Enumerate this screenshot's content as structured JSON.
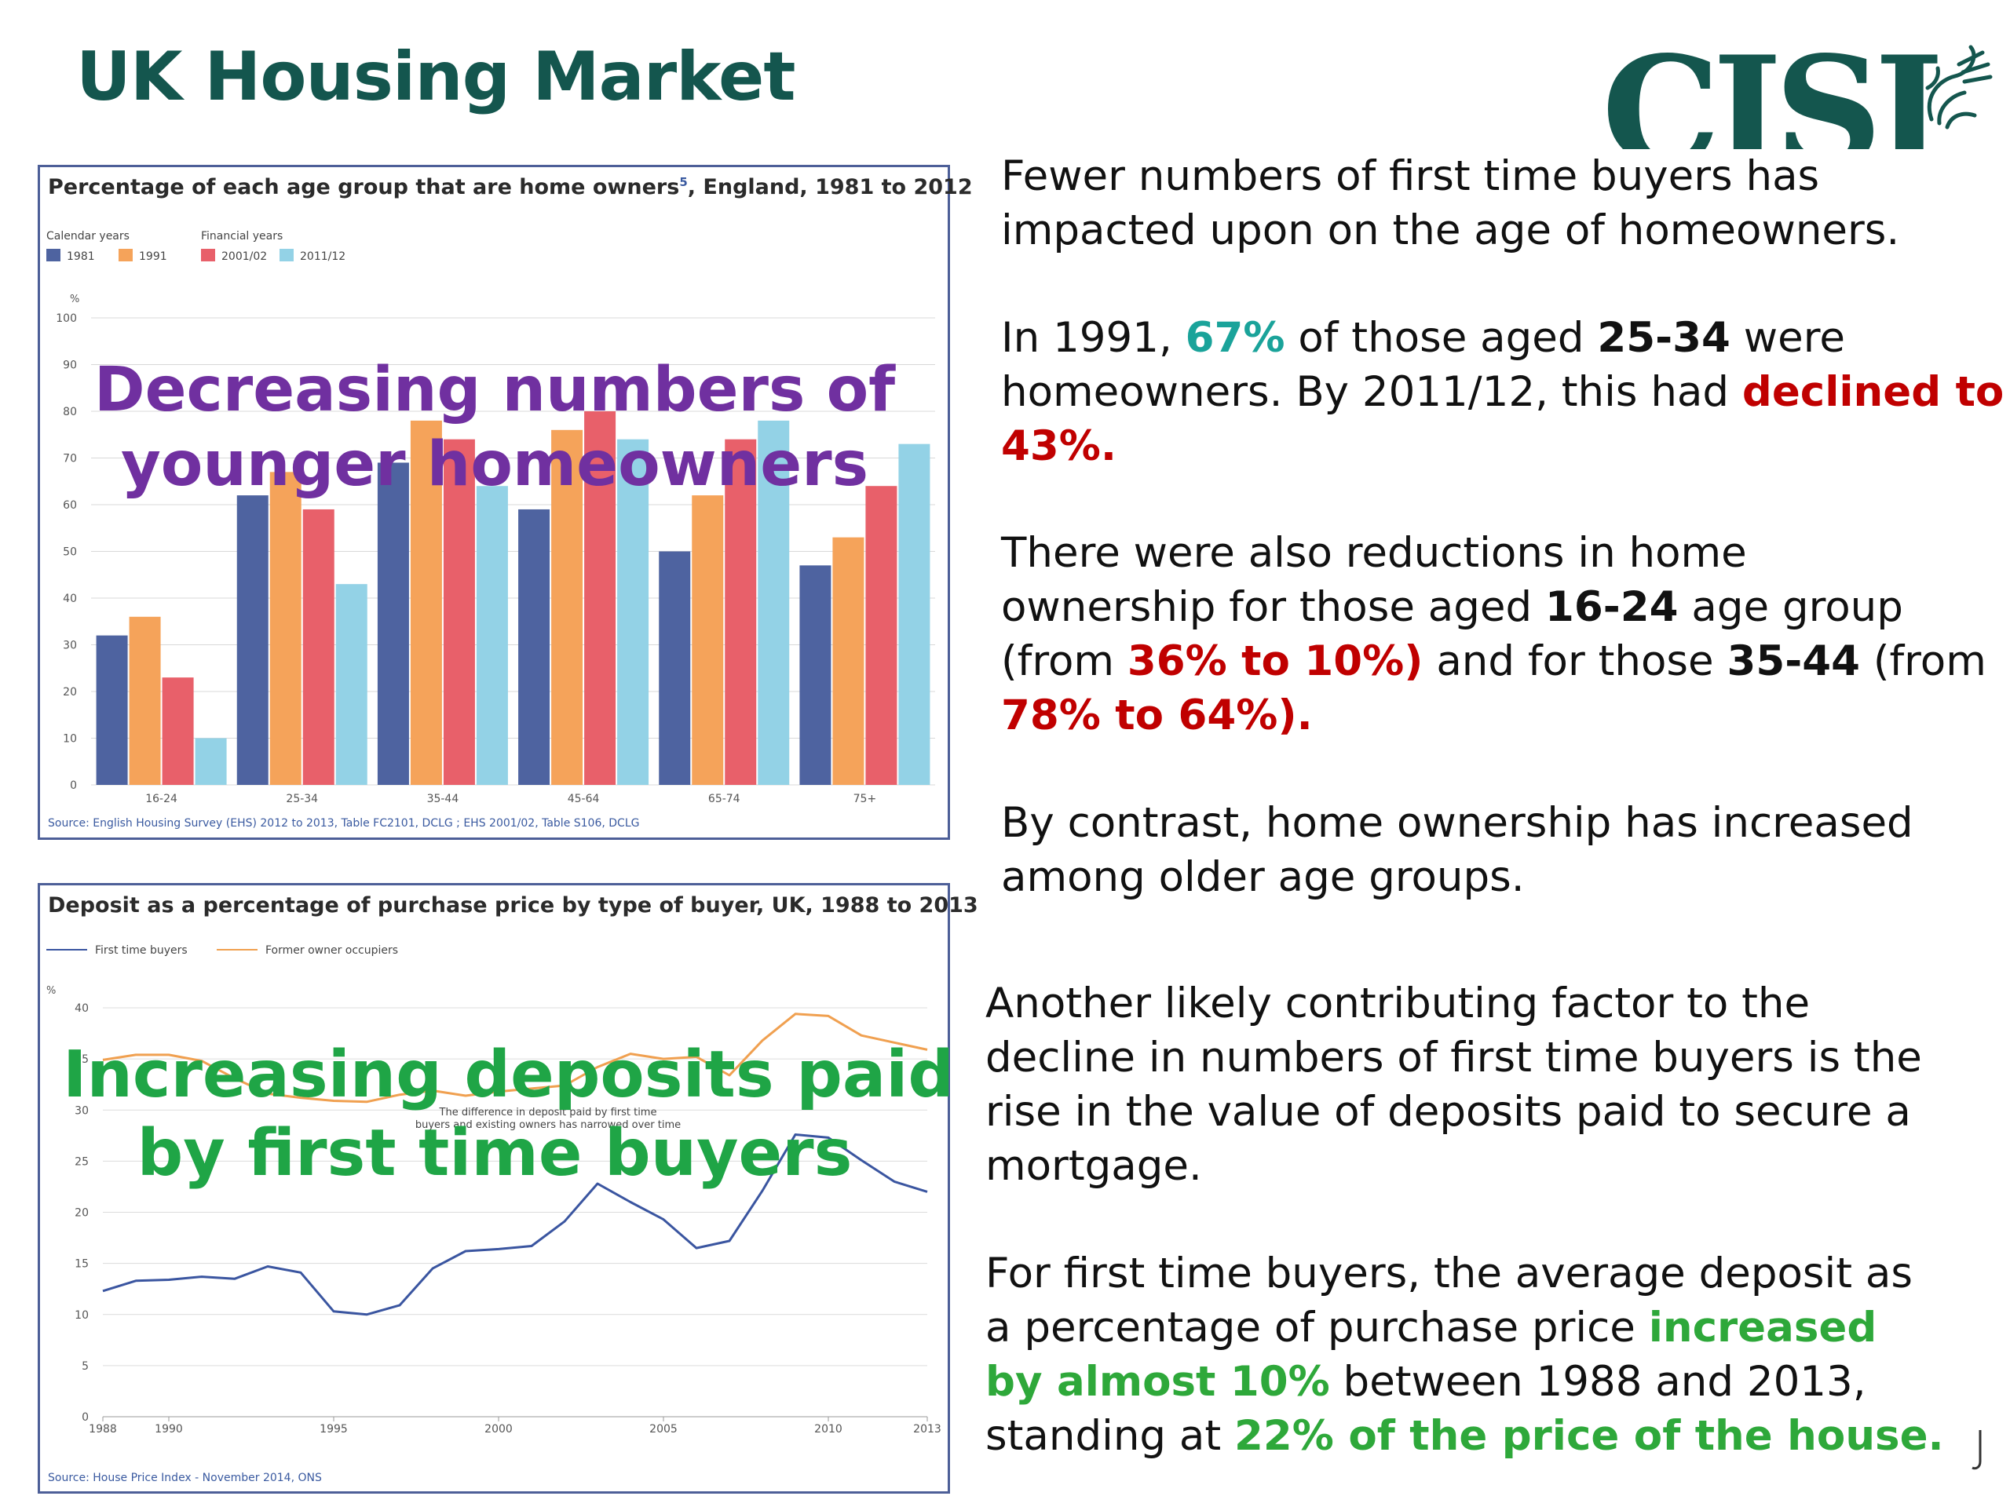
{
  "slide": {
    "title": "UK Housing Market"
  },
  "logo": {
    "text": "CISI"
  },
  "chart1": {
    "title_main": "Percentage of each age group that are home owners",
    "title_sup": "5",
    "title_rest": ", England, 1981 to 2012",
    "legend_group_calendar": "Calendar years",
    "legend_group_financial": "Financial years",
    "y_unit": "%",
    "source": "Source: English Housing Survey (EHS) 2012 to 2013, Table FC2101, DCLG ; EHS 2001/02, Table S106, DCLG",
    "overlay_line1": "Decreasing numbers of",
    "overlay_line2": "younger homeowners"
  },
  "chart2": {
    "title": "Deposit as a percentage of purchase price by type of buyer, UK, 1988 to 2013",
    "y_unit": "%",
    "annotation_line1": "The difference in deposit paid by first time",
    "annotation_line2": "buyers and existing owners has narrowed over time",
    "source": "Source: House Price Index - November 2014, ONS",
    "overlay_line1": "Increasing deposits paid",
    "overlay_line2": "by first time buyers"
  },
  "chart_data": [
    {
      "type": "bar",
      "categories": [
        "16-24",
        "25-34",
        "35-44",
        "45-64",
        "65-74",
        "75+"
      ],
      "series": [
        {
          "name": "1981",
          "color": "#4e63a0",
          "values": [
            32,
            62,
            69,
            59,
            50,
            47
          ]
        },
        {
          "name": "1991",
          "color": "#f5a35a",
          "values": [
            36,
            67,
            78,
            76,
            62,
            53
          ]
        },
        {
          "name": "2001/02",
          "color": "#e8606a",
          "values": [
            23,
            59,
            74,
            80,
            74,
            64
          ]
        },
        {
          "name": "2011/12",
          "color": "#93d2e6",
          "values": [
            10,
            43,
            64,
            74,
            78,
            73
          ]
        }
      ],
      "ylim": [
        0,
        100
      ],
      "yticks": [
        0,
        10,
        20,
        30,
        40,
        50,
        60,
        70,
        80,
        90,
        100
      ],
      "grid": true
    },
    {
      "type": "line",
      "x": [
        1988,
        1989,
        1990,
        1991,
        1992,
        1993,
        1994,
        1995,
        1996,
        1997,
        1998,
        1999,
        2000,
        2001,
        2002,
        2003,
        2004,
        2005,
        2006,
        2007,
        2008,
        2009,
        2010,
        2011,
        2012,
        2013
      ],
      "series": [
        {
          "name": "First time buyers",
          "color": "#3a55a0",
          "values": [
            12.3,
            13.3,
            13.4,
            13.7,
            13.5,
            14.7,
            14.1,
            10.3,
            10.0,
            10.9,
            14.5,
            16.2,
            16.4,
            16.7,
            19.1,
            22.8,
            21.0,
            19.3,
            16.5,
            17.2,
            22.1,
            27.6,
            27.3,
            25.1,
            23.0,
            22.0
          ]
        },
        {
          "name": "Former owner occupiers",
          "color": "#f0a050",
          "values": [
            34.9,
            35.4,
            35.4,
            34.8,
            33.1,
            31.6,
            31.2,
            30.9,
            30.8,
            31.5,
            31.9,
            31.4,
            31.8,
            32.1,
            32.4,
            34.2,
            35.5,
            35.0,
            35.2,
            33.4,
            36.8,
            39.4,
            39.2,
            37.3,
            36.6,
            35.9
          ]
        }
      ],
      "xticks": [
        1988,
        1990,
        1995,
        2000,
        2005,
        2010,
        2013
      ],
      "ylim": [
        0,
        40
      ],
      "yticks": [
        0,
        5,
        10,
        15,
        20,
        25,
        30,
        35,
        40
      ],
      "grid": true
    }
  ],
  "text": {
    "p1_l1": "Fewer numbers of first time buyers has",
    "p1_l2": "impacted upon on the age of homeowners.",
    "p2_a": "In 1991, ",
    "p2_b": "67%",
    "p2_c": " of those aged ",
    "p2_d": "25-34",
    "p2_e": " were",
    "p2_f": "homeowners. By 2011/12, this had ",
    "p2_g": "declined to",
    "p2_h": "43%.",
    "p3_l1": "There were also reductions in home",
    "p3_a": "ownership for those aged ",
    "p3_b": "16-24",
    "p3_c": " age group",
    "p3_d": "(from ",
    "p3_e": "36% to 10%)",
    "p3_f": " and for those ",
    "p3_g": "35-44",
    "p3_h": " (from",
    "p3_i": "78% to 64%).",
    "p4_l1": "By contrast, home ownership has increased",
    "p4_l2": "among older age groups.",
    "p5_l1": "Another likely contributing factor to the",
    "p5_l2": "decline in numbers of first time buyers is the",
    "p5_l3": "rise in the value of deposits paid to secure a",
    "p5_l4": "mortgage.",
    "p6_l1": "For first time buyers, the average deposit as",
    "p6_a": "a percentage of purchase price ",
    "p6_b": "increased",
    "p6_c": "by almost 10%",
    "p6_d": " between 1988 and 2013,",
    "p6_e": "standing at ",
    "p6_f": "22% of the price of the house."
  }
}
